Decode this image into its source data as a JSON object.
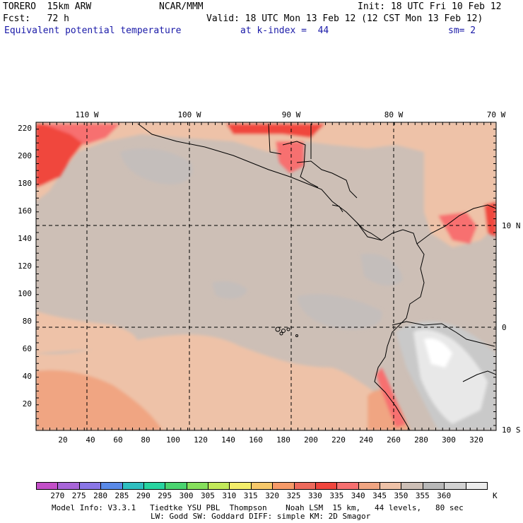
{
  "header": {
    "model": "TORERO  15km ARW",
    "org": "NCAR/MMM",
    "init": "Init: 18 UTC Fri 10 Feb 12",
    "fcst": "Fcst:   72 h",
    "valid": "Valid: 18 UTC Mon 13 Feb 12 (12 CST Mon 13 Feb 12)",
    "field": "Equivalent potential temperature",
    "level": "at k-index =  44",
    "smooth": "sm= 2"
  },
  "map": {
    "lon_labels": [
      "110 W",
      "100 W",
      "90 W",
      "80 W",
      "70 W"
    ],
    "lat_labels": [
      "10 N",
      "0",
      "10 S"
    ],
    "x_ticks": [
      "20",
      "40",
      "60",
      "80",
      "100",
      "120",
      "140",
      "160",
      "180",
      "200",
      "220",
      "240",
      "260",
      "280",
      "300",
      "320"
    ],
    "y_ticks": [
      "220",
      "200",
      "180",
      "160",
      "140",
      "120",
      "100",
      "80",
      "60",
      "40",
      "20"
    ]
  },
  "colorbar": {
    "unit": "K",
    "labels": [
      "270",
      "275",
      "280",
      "285",
      "290",
      "295",
      "300",
      "305",
      "310",
      "315",
      "320",
      "325",
      "330",
      "335",
      "340",
      "345",
      "350",
      "355",
      "360"
    ],
    "colors": [
      "#c34fc8",
      "#a865d8",
      "#8a76e6",
      "#5a8ae8",
      "#2fbfc0",
      "#28d4a0",
      "#4ad470",
      "#86e05c",
      "#c2ea5a",
      "#f4ee6a",
      "#f7c86a",
      "#f79a68",
      "#ee6a5c",
      "#f0463e",
      "#f77070",
      "#f0a582",
      "#eec2a8",
      "#cdbfb6",
      "#b8b8b8",
      "#d2d2d2",
      "#ececec"
    ]
  },
  "footer": {
    "line1": "Model Info: V3.3.1   Tiedtke YSU PBL  Thompson    Noah LSM  15 km,   44 levels,   80 sec",
    "line2": "LW: Godd SW: Goddard DIFF: simple KM: 2D Smagor"
  }
}
